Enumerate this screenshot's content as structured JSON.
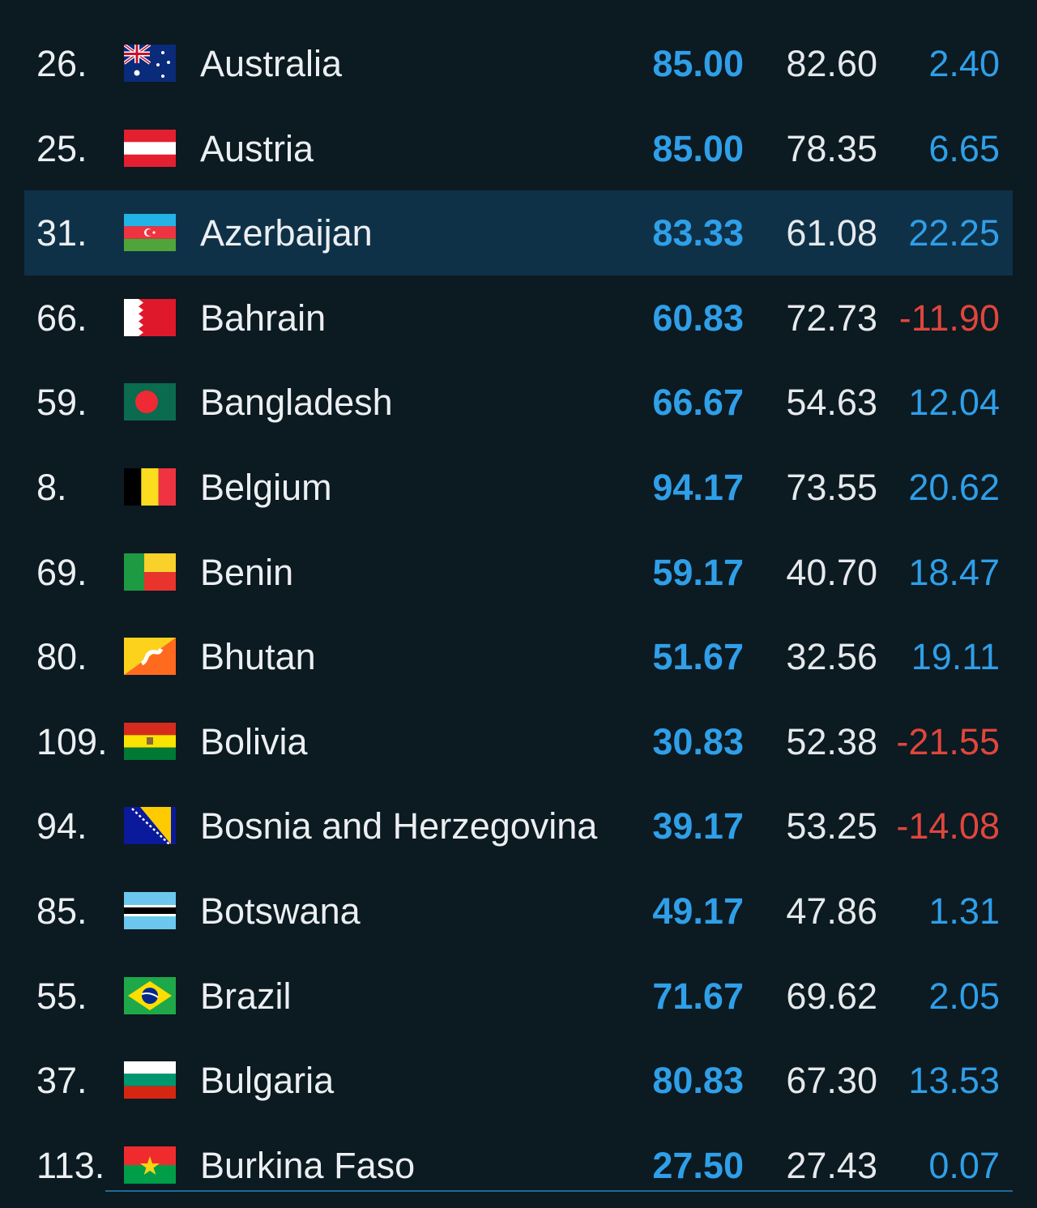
{
  "table": {
    "rows": [
      {
        "rank": "26.",
        "country": "Australia",
        "score": "85.00",
        "previous": "82.60",
        "change": "2.40"
      },
      {
        "rank": "25.",
        "country": "Austria",
        "score": "85.00",
        "previous": "78.35",
        "change": "6.65"
      },
      {
        "rank": "31.",
        "country": "Azerbaijan",
        "score": "83.33",
        "previous": "61.08",
        "change": "22.25",
        "highlighted": true
      },
      {
        "rank": "66.",
        "country": "Bahrain",
        "score": "60.83",
        "previous": "72.73",
        "change": "-11.90"
      },
      {
        "rank": "59.",
        "country": "Bangladesh",
        "score": "66.67",
        "previous": "54.63",
        "change": "12.04"
      },
      {
        "rank": "8.",
        "country": "Belgium",
        "score": "94.17",
        "previous": "73.55",
        "change": "20.62"
      },
      {
        "rank": "69.",
        "country": "Benin",
        "score": "59.17",
        "previous": "40.70",
        "change": "18.47"
      },
      {
        "rank": "80.",
        "country": "Bhutan",
        "score": "51.67",
        "previous": "32.56",
        "change": "19.11"
      },
      {
        "rank": "109.",
        "country": "Bolivia",
        "score": "30.83",
        "previous": "52.38",
        "change": "-21.55"
      },
      {
        "rank": "94.",
        "country": "Bosnia and Herzegovina",
        "score": "39.17",
        "previous": "53.25",
        "change": "-14.08"
      },
      {
        "rank": "85.",
        "country": "Botswana",
        "score": "49.17",
        "previous": "47.86",
        "change": "1.31"
      },
      {
        "rank": "55.",
        "country": "Brazil",
        "score": "71.67",
        "previous": "69.62",
        "change": "2.05"
      },
      {
        "rank": "37.",
        "country": "Bulgaria",
        "score": "80.83",
        "previous": "67.30",
        "change": "13.53"
      },
      {
        "rank": "113.",
        "country": "Burkina Faso",
        "score": "27.50",
        "previous": "27.43",
        "change": "0.07"
      }
    ]
  }
}
